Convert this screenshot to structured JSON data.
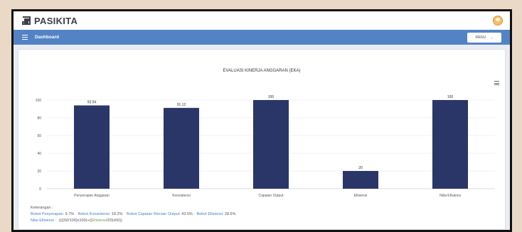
{
  "app": {
    "name": "PASIKITA"
  },
  "colors": {
    "nav": "#5383c4",
    "bar": "#2b3668",
    "accent_blue": "#4a7ecb",
    "accent_green": "#6da44a"
  },
  "navbar": {
    "title": "Dashboard",
    "menu_label": "MENU"
  },
  "chart_data": {
    "type": "bar",
    "title": "EVALUASI KINERJA ANGGARAN (EKA)",
    "categories": [
      "Penyerapan Anggaran",
      "Konsistensi",
      "Capaian Output",
      "Efisiensi",
      "Nilai Efisiensi"
    ],
    "values": [
      93.94,
      91.12,
      100,
      20,
      100
    ],
    "data_labels": [
      "93.94",
      "91.12",
      "100",
      "20",
      "100"
    ],
    "ylim": [
      0,
      100
    ],
    "yticks": [
      "0",
      "20",
      "40",
      "60",
      "80",
      "100"
    ],
    "grid": true
  },
  "notes": {
    "heading": "Keterangan :",
    "w1_label": "Bobot Penyerapan:",
    "w1_value": "9.7%",
    "w2_label": "Bobot Konsistensi:",
    "w2_value": "18.2%",
    "w3_label": "Bobot Capaian Rincian Output:",
    "w3_value": "43.5%",
    "w4_label": "Bobot Efisiensi:",
    "w4_value": "28.6%",
    "f_label": "Nilai Efisiensi :",
    "f_pre": "((((50/100)x100)+((",
    "f_mid": "Efisiensi",
    "f_post": "/20)x50))"
  }
}
